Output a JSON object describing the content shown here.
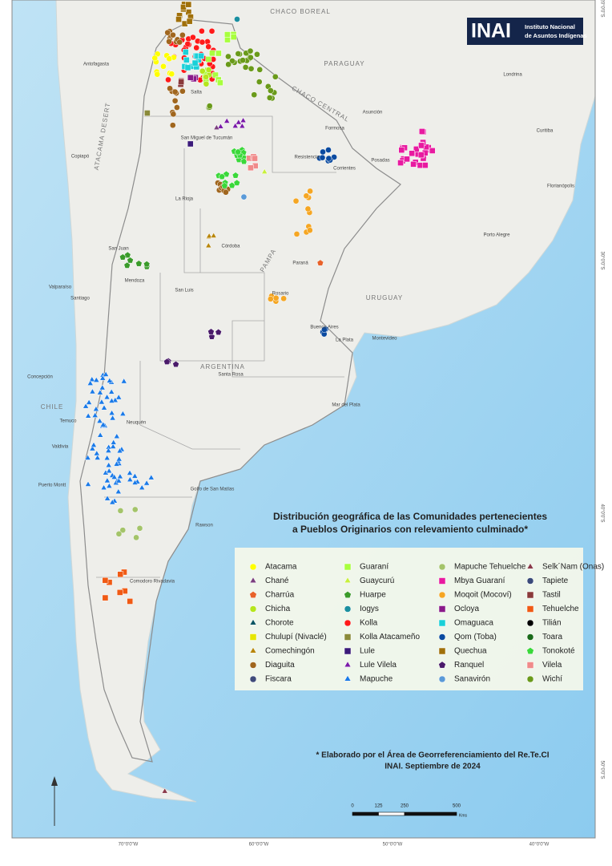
{
  "header": {
    "logo": "INAI",
    "institution": [
      "Instituto Nacional",
      "de Asuntos Indígenas"
    ]
  },
  "title": [
    "Distribución geográfica de las Comunidades pertenecientes",
    "a Pueblos Originarios con relevamiento culminado*"
  ],
  "legend": [
    {
      "name": "Atacama",
      "shape": "circle",
      "color": "#ffff00"
    },
    {
      "name": "Chané",
      "shape": "triangle",
      "color": "#7b3f7f"
    },
    {
      "name": "Charrúa",
      "shape": "pentagon",
      "color": "#e8622a"
    },
    {
      "name": "Chicha",
      "shape": "circle",
      "color": "#b5e61d"
    },
    {
      "name": "Chorote",
      "shape": "triangle",
      "color": "#0b5563"
    },
    {
      "name": "Chulupí (Nivaclé)",
      "shape": "square",
      "color": "#e6e600"
    },
    {
      "name": "Comechingón",
      "shape": "triangle",
      "color": "#b8860b"
    },
    {
      "name": "Diaguita",
      "shape": "circle",
      "color": "#a0661e"
    },
    {
      "name": "Fiscara",
      "shape": "circle",
      "color": "#3f4a7a"
    },
    {
      "name": "Guaraní",
      "shape": "square",
      "color": "#a8ff3e"
    },
    {
      "name": "Guaycurú",
      "shape": "triangle",
      "color": "#c8f03c"
    },
    {
      "name": "Huarpe",
      "shape": "pentagon",
      "color": "#3a9b2a"
    },
    {
      "name": "Iogys",
      "shape": "circle",
      "color": "#1a8fa0"
    },
    {
      "name": "Kolla",
      "shape": "circle",
      "color": "#ff1a1a"
    },
    {
      "name": "Kolla Atacameño",
      "shape": "square",
      "color": "#8a8a3a"
    },
    {
      "name": "Lule",
      "shape": "square",
      "color": "#3b1a7a"
    },
    {
      "name": "Lule Vilela",
      "shape": "triangle",
      "color": "#7a1aa8"
    },
    {
      "name": "Mapuche",
      "shape": "triangle",
      "color": "#1a7ae8"
    },
    {
      "name": "Mapuche Tehuelche",
      "shape": "circle",
      "color": "#a4c46a"
    },
    {
      "name": "Mbya Guaraní",
      "shape": "square",
      "color": "#e81aa0"
    },
    {
      "name": "Moqoit (Mocoví)",
      "shape": "circle",
      "color": "#f5a623"
    },
    {
      "name": "Ocloya",
      "shape": "square",
      "color": "#8a1a8a"
    },
    {
      "name": "Omaguaca",
      "shape": "square",
      "color": "#1ad0d8"
    },
    {
      "name": "Qom (Toba)",
      "shape": "circle",
      "color": "#0a4aa0"
    },
    {
      "name": "Quechua",
      "shape": "square",
      "color": "#a0700a"
    },
    {
      "name": "Ranquel",
      "shape": "pentagon",
      "color": "#4a1a6a"
    },
    {
      "name": "Sanavirón",
      "shape": "circle",
      "color": "#5a9ad8"
    },
    {
      "name": "Selk´Nam (Onas)",
      "shape": "triangle",
      "color": "#8a3a4a"
    },
    {
      "name": "Tapiete",
      "shape": "circle",
      "color": "#3a4a7a"
    },
    {
      "name": "Tastil",
      "shape": "square",
      "color": "#8a3a3a"
    },
    {
      "name": "Tehuelche",
      "shape": "square",
      "color": "#f05a14"
    },
    {
      "name": "Tilián",
      "shape": "circle",
      "color": "#000000"
    },
    {
      "name": "Toara",
      "shape": "circle",
      "color": "#1a6a1a"
    },
    {
      "name": "Tonokoté",
      "shape": "pentagon",
      "color": "#3ad83a"
    },
    {
      "name": "Vilela",
      "shape": "square",
      "color": "#f08a8a"
    },
    {
      "name": "Wichí",
      "shape": "circle",
      "color": "#6a9a1a"
    }
  ],
  "footnote": [
    "* Elaborado por el Área de Georreferenciamiento del Re.Te.CI",
    "INAI. Septiembre de 2024"
  ],
  "regions": [
    "CHACO BOREAL",
    "PARAGUAY",
    "CHACO CENTRAL",
    "URUGUAY",
    "ARGENTINA",
    "CHILE",
    "ATACAMA DESERT",
    "PAMPA"
  ],
  "places": [
    "Antofagasta",
    "Copiapó",
    "Salta",
    "San Miguel de Tucumán",
    "Resistencia",
    "Corrientes",
    "Posadas",
    "Formosa",
    "Asunción",
    "La Rioja",
    "Córdoba",
    "San Juan",
    "Mendoza",
    "San Luis",
    "Paraná",
    "Rosario",
    "Buenos Aires",
    "La Plata",
    "Montevideo",
    "Santa Rosa",
    "Neuquén",
    "Valparaíso",
    "Santiago",
    "Concepción",
    "Temuco",
    "Valdivia",
    "Puerto Montt",
    "Porto Alegre",
    "Curitiba",
    "Florianópolis",
    "Londrina",
    "Mar del Plata",
    "Rawson",
    "Comodoro Rivadavia",
    "Golfo de San Matías"
  ],
  "graticule": {
    "longitudes": [
      "70°0'0\"W",
      "60°0'0\"W",
      "50°0'0\"W",
      "40°0'0\"W"
    ],
    "latitudes": [
      "20°0'0\"S",
      "30°0'0\"S",
      "40°0'0\"S",
      "50°0'0\"S"
    ]
  },
  "scale_bar": {
    "ticks": [
      0,
      125,
      250,
      500
    ],
    "unit": "Kms"
  }
}
